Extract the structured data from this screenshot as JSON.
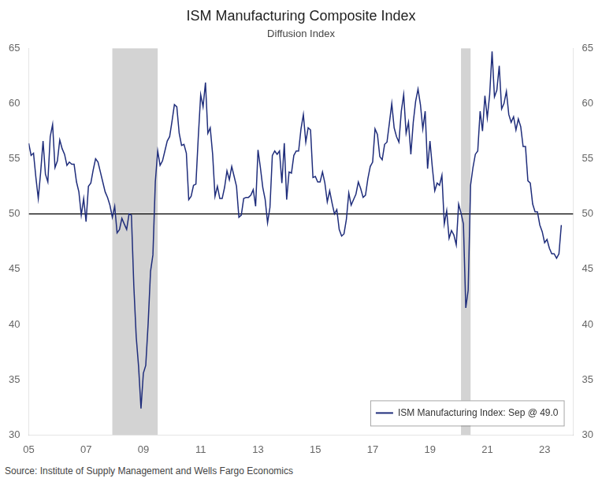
{
  "chart_data": {
    "type": "line",
    "title": "ISM Manufacturing Composite Index",
    "subtitle": "Diffusion Index",
    "source": "Source: Institute of Supply Management and Wells Fargo Economics",
    "x": [
      2005.0,
      2005.083,
      2005.167,
      2005.25,
      2005.333,
      2005.417,
      2005.5,
      2005.583,
      2005.667,
      2005.75,
      2005.833,
      2005.917,
      2006.0,
      2006.083,
      2006.167,
      2006.25,
      2006.333,
      2006.417,
      2006.5,
      2006.583,
      2006.667,
      2006.75,
      2006.833,
      2006.917,
      2007.0,
      2007.083,
      2007.167,
      2007.25,
      2007.333,
      2007.417,
      2007.5,
      2007.583,
      2007.667,
      2007.75,
      2007.833,
      2007.917,
      2008.0,
      2008.083,
      2008.167,
      2008.25,
      2008.333,
      2008.417,
      2008.5,
      2008.583,
      2008.667,
      2008.75,
      2008.833,
      2008.917,
      2009.0,
      2009.083,
      2009.167,
      2009.25,
      2009.333,
      2009.417,
      2009.5,
      2009.583,
      2009.667,
      2009.75,
      2009.833,
      2009.917,
      2010.0,
      2010.083,
      2010.167,
      2010.25,
      2010.333,
      2010.417,
      2010.5,
      2010.583,
      2010.667,
      2010.75,
      2010.833,
      2010.917,
      2011.0,
      2011.083,
      2011.167,
      2011.25,
      2011.333,
      2011.417,
      2011.5,
      2011.583,
      2011.667,
      2011.75,
      2011.833,
      2011.917,
      2012.0,
      2012.083,
      2012.167,
      2012.25,
      2012.333,
      2012.417,
      2012.5,
      2012.583,
      2012.667,
      2012.75,
      2012.833,
      2012.917,
      2013.0,
      2013.083,
      2013.167,
      2013.25,
      2013.333,
      2013.417,
      2013.5,
      2013.583,
      2013.667,
      2013.75,
      2013.833,
      2013.917,
      2014.0,
      2014.083,
      2014.167,
      2014.25,
      2014.333,
      2014.417,
      2014.5,
      2014.583,
      2014.667,
      2014.75,
      2014.833,
      2014.917,
      2015.0,
      2015.083,
      2015.167,
      2015.25,
      2015.333,
      2015.417,
      2015.5,
      2015.583,
      2015.667,
      2015.75,
      2015.833,
      2015.917,
      2016.0,
      2016.083,
      2016.167,
      2016.25,
      2016.333,
      2016.417,
      2016.5,
      2016.583,
      2016.667,
      2016.75,
      2016.833,
      2016.917,
      2017.0,
      2017.083,
      2017.167,
      2017.25,
      2017.333,
      2017.417,
      2017.5,
      2017.583,
      2017.667,
      2017.75,
      2017.833,
      2017.917,
      2018.0,
      2018.083,
      2018.167,
      2018.25,
      2018.333,
      2018.417,
      2018.5,
      2018.583,
      2018.667,
      2018.75,
      2018.833,
      2018.917,
      2019.0,
      2019.083,
      2019.167,
      2019.25,
      2019.333,
      2019.417,
      2019.5,
      2019.583,
      2019.667,
      2019.75,
      2019.833,
      2019.917,
      2020.0,
      2020.083,
      2020.167,
      2020.25,
      2020.333,
      2020.417,
      2020.5,
      2020.583,
      2020.667,
      2020.75,
      2020.833,
      2020.917,
      2021.0,
      2021.083,
      2021.167,
      2021.25,
      2021.333,
      2021.417,
      2021.5,
      2021.583,
      2021.667,
      2021.75,
      2021.833,
      2021.917,
      2022.0,
      2022.083,
      2022.167,
      2022.25,
      2022.333,
      2022.417,
      2022.5,
      2022.583,
      2022.667,
      2022.75,
      2022.833,
      2022.917,
      2023.0,
      2023.083,
      2023.167,
      2023.25,
      2023.333,
      2023.417,
      2023.5,
      2023.583
    ],
    "series": [
      {
        "name": "ISM Manufacturing Index: Sep @ 49.0",
        "color": "#1F2D7B",
        "values": [
          56.4,
          55.3,
          55.5,
          53.3,
          51.4,
          53.8,
          56.6,
          53.6,
          52.9,
          57.0,
          58.1,
          54.2,
          54.8,
          56.7,
          55.9,
          55.4,
          54.4,
          54.7,
          54.5,
          54.5,
          52.9,
          52.0,
          49.9,
          51.4,
          49.3,
          52.5,
          52.8,
          54.0,
          55.0,
          54.7,
          53.8,
          52.9,
          52.0,
          51.5,
          50.8,
          49.7,
          50.7,
          48.3,
          48.6,
          49.6,
          49.1,
          48.6,
          50.0,
          49.9,
          43.5,
          38.9,
          36.2,
          32.4,
          35.6,
          36.3,
          40.1,
          44.8,
          46.3,
          52.9,
          55.7,
          54.4,
          54.8,
          55.7,
          56.6,
          57.0,
          58.4,
          59.9,
          59.7,
          57.3,
          56.2,
          56.3,
          55.5,
          51.3,
          51.6,
          52.6,
          52.7,
          57.0,
          60.8,
          59.7,
          61.9,
          57.3,
          57.8,
          55.4,
          51.6,
          52.5,
          51.4,
          51.4,
          52.4,
          53.9,
          53.1,
          54.3,
          53.4,
          52.5,
          49.7,
          49.9,
          51.4,
          51.5,
          51.5,
          51.7,
          52.2,
          50.7,
          55.8,
          54.2,
          52.4,
          51.3,
          49.2,
          50.6,
          55.3,
          55.7,
          55.4,
          55.7,
          52.8,
          56.4,
          51.3,
          53.8,
          53.7,
          55.3,
          55.7,
          55.7,
          57.7,
          59.0,
          56.5,
          57.8,
          57.6,
          53.3,
          53.4,
          52.9,
          52.9,
          53.8,
          52.8,
          51.1,
          52.1,
          51.0,
          50.0,
          50.4,
          48.6,
          48.0,
          48.2,
          49.5,
          51.9,
          50.8,
          51.3,
          51.8,
          52.9,
          52.3,
          51.5,
          51.7,
          53.2,
          54.3,
          54.7,
          57.7,
          57.2,
          55.2,
          54.9,
          56.3,
          56.5,
          58.2,
          60.0,
          57.8,
          57.0,
          56.5,
          59.3,
          60.8,
          57.3,
          58.3,
          55.4,
          58.3,
          60.2,
          61.3,
          59.9,
          57.7,
          59.3,
          54.1,
          56.6,
          54.2,
          52.1,
          52.8,
          52.6,
          53.5,
          49.1,
          50.3,
          47.8,
          48.5,
          48.1,
          47.2,
          50.9,
          50.1,
          49.1,
          41.5,
          43.1,
          52.6,
          54.2,
          55.4,
          55.7,
          59.3,
          57.5,
          60.7,
          58.7,
          60.8,
          64.7,
          60.6,
          61.2,
          63.4,
          59.5,
          60.0,
          61.1,
          59.0,
          58.3,
          58.8,
          57.6,
          58.6,
          57.9,
          56.1,
          56.1,
          53.0,
          52.8,
          50.9,
          50.2,
          50.2,
          49.0,
          48.4,
          47.4,
          47.7,
          46.9,
          46.4,
          46.4,
          46.0,
          46.4,
          49.0
        ]
      }
    ],
    "xlim": [
      2005.0,
      2024.0
    ],
    "xticks": [
      {
        "value": 2005,
        "label": "05"
      },
      {
        "value": 2007,
        "label": "07"
      },
      {
        "value": 2009,
        "label": "09"
      },
      {
        "value": 2011,
        "label": "11"
      },
      {
        "value": 2013,
        "label": "13"
      },
      {
        "value": 2015,
        "label": "15"
      },
      {
        "value": 2017,
        "label": "17"
      },
      {
        "value": 2019,
        "label": "19"
      },
      {
        "value": 2021,
        "label": "21"
      },
      {
        "value": 2023,
        "label": "23"
      }
    ],
    "ylim": [
      30,
      65
    ],
    "yticks": [
      30,
      35,
      40,
      45,
      50,
      55,
      60,
      65
    ],
    "y2lim": [
      30,
      65
    ],
    "y2ticks": [
      30,
      35,
      40,
      45,
      50,
      55,
      60,
      65
    ],
    "hline": 50,
    "recession_bands": [
      [
        2007.917,
        2009.5
      ],
      [
        2020.083,
        2020.417
      ]
    ],
    "recession_color": "#D3D3D3",
    "legend": "lower right",
    "grid": false
  }
}
